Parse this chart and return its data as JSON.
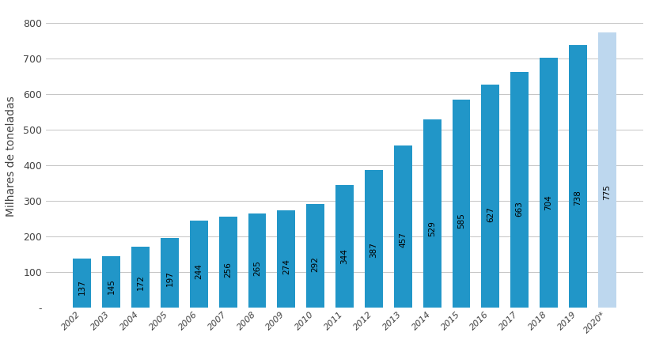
{
  "years": [
    "2002",
    "2003",
    "2004",
    "2005",
    "2006",
    "2007",
    "2008",
    "2009",
    "2010",
    "2011",
    "2012",
    "2013",
    "2014",
    "2015",
    "2016",
    "2017",
    "2018",
    "2019",
    "2020*"
  ],
  "values": [
    137,
    145,
    172,
    197,
    244,
    256,
    265,
    274,
    292,
    344,
    387,
    457,
    529,
    585,
    627,
    663,
    704,
    738,
    775
  ],
  "bar_colors": [
    "#2196C8",
    "#2196C8",
    "#2196C8",
    "#2196C8",
    "#2196C8",
    "#2196C8",
    "#2196C8",
    "#2196C8",
    "#2196C8",
    "#2196C8",
    "#2196C8",
    "#2196C8",
    "#2196C8",
    "#2196C8",
    "#2196C8",
    "#2196C8",
    "#2196C8",
    "#2196C8",
    "#BDD7EE"
  ],
  "ylabel": "Milhares de toneladas",
  "ylim": [
    0,
    850
  ],
  "yticks": [
    0,
    100,
    200,
    300,
    400,
    500,
    600,
    700,
    800
  ],
  "ytick_labels": [
    "-",
    "100",
    "200",
    "300",
    "400",
    "500",
    "600",
    "700",
    "800"
  ],
  "background_color": "#ffffff",
  "grid_color": "#bbbbbb",
  "bar_label_color": "#000000",
  "bar_label_fontsize": 7.5,
  "bar_width": 0.62,
  "figsize": [
    8.2,
    4.3
  ],
  "dpi": 100
}
